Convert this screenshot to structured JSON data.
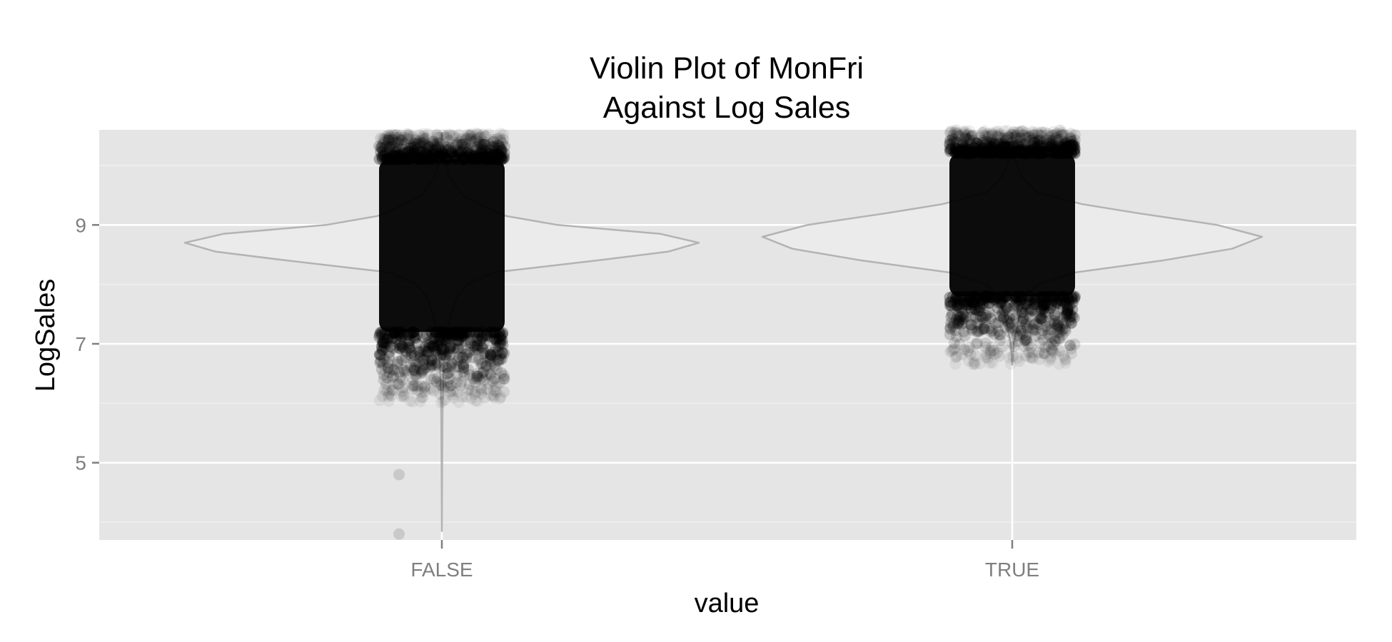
{
  "chart_data": {
    "type": "violin",
    "title": [
      "Violin Plot of MonFri",
      "Against Log Sales"
    ],
    "xlabel": "value",
    "ylabel": "LogSales",
    "categories": [
      "FALSE",
      "TRUE"
    ],
    "y_ticks": [
      5,
      7,
      9
    ],
    "ylim": [
      3.7,
      10.6
    ],
    "grid": true,
    "colors": {
      "panel": "#e5e5e5",
      "grid_major": "#ffffff",
      "grid_minor": "#f2f2f2",
      "violin_outline": "#b3b3b3",
      "violin_fill": "#ebebeb",
      "points": "#000000",
      "tick_text": "#7f7f7f"
    },
    "violins": [
      {
        "category": "FALSE",
        "y_min": 3.85,
        "y_max": 10.55,
        "half_width": [
          [
            3.85,
            0.0
          ],
          [
            5.0,
            0.001
          ],
          [
            6.0,
            0.003
          ],
          [
            6.5,
            0.006
          ],
          [
            7.0,
            0.015
          ],
          [
            7.5,
            0.035
          ],
          [
            7.8,
            0.06
          ],
          [
            8.0,
            0.1
          ],
          [
            8.2,
            0.2
          ],
          [
            8.4,
            0.6
          ],
          [
            8.55,
            0.88
          ],
          [
            8.7,
            1.0
          ],
          [
            8.85,
            0.85
          ],
          [
            9.0,
            0.45
          ],
          [
            9.15,
            0.25
          ],
          [
            9.3,
            0.17
          ],
          [
            9.5,
            0.08
          ],
          [
            9.8,
            0.03
          ],
          [
            10.1,
            0.01
          ],
          [
            10.55,
            0.0
          ]
        ]
      },
      {
        "category": "TRUE",
        "y_min": 6.65,
        "y_max": 10.55,
        "half_width": [
          [
            6.65,
            0.0
          ],
          [
            7.0,
            0.006
          ],
          [
            7.5,
            0.03
          ],
          [
            7.8,
            0.06
          ],
          [
            8.0,
            0.1
          ],
          [
            8.2,
            0.25
          ],
          [
            8.4,
            0.6
          ],
          [
            8.6,
            0.88
          ],
          [
            8.8,
            1.0
          ],
          [
            9.0,
            0.82
          ],
          [
            9.2,
            0.5
          ],
          [
            9.35,
            0.28
          ],
          [
            9.55,
            0.1
          ],
          [
            9.8,
            0.04
          ],
          [
            10.1,
            0.012
          ],
          [
            10.55,
            0.0
          ]
        ]
      }
    ],
    "points": [
      {
        "category": "FALSE",
        "dense_range": [
          7.2,
          10.1
        ],
        "range": [
          6.0,
          10.55
        ],
        "outliers": [
          4.8,
          3.8
        ]
      },
      {
        "category": "TRUE",
        "dense_range": [
          7.8,
          10.2
        ],
        "range": [
          6.65,
          10.6
        ],
        "outliers": []
      }
    ]
  }
}
